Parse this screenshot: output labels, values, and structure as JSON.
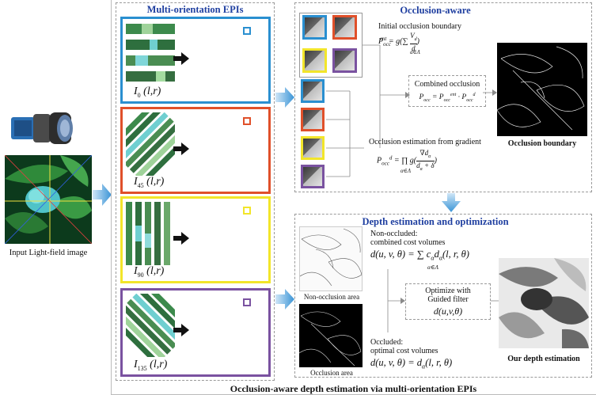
{
  "input": {
    "label": "Input Light-field image",
    "camera_icon": "lightfield-camera-icon",
    "photo": "butterfly-on-leaves-image"
  },
  "epis": {
    "title": "Multi-orientation EPIs",
    "boxes": [
      {
        "sub": "0",
        "label_rest": "(l,r)",
        "color": "#2a8fd0"
      },
      {
        "sub": "45",
        "label_rest": "(l,r)",
        "color": "#e0502a"
      },
      {
        "sub": "90",
        "label_rest": "(l,r)",
        "color": "#f2e52a"
      },
      {
        "sub": "135",
        "label_rest": "(l,r)",
        "color": "#7a52a0"
      }
    ],
    "arrow_icon": "black-right-arrow-icon"
  },
  "occlusion": {
    "title": "Occlusion-aware",
    "initial_label": "Initial occlusion boundary",
    "initial_formula": "P_occ^ent = g(∑ V_d / d)",
    "initial_sum_index": "d∈Λ",
    "combined_label": "Combined occlusion",
    "combined_formula": "P_occ = P_occ^ent · P_occ^d",
    "gradient_label": "Occlusion estimation from gradient",
    "gradient_formula": "P_occ^d = ∏ g(∇d_α / (d_α + δ))",
    "gradient_prod_index": "α∈Λ",
    "result_label": "Occlusion boundary"
  },
  "depth": {
    "title": "Depth estimation and optimization",
    "nonocc_label_1": "Non-occluded:",
    "nonocc_label_2": "combined cost volumes",
    "nonocc_formula": "d(u,v,θ) = ∑ c_α d_α(l,r,θ)",
    "nonocc_sum_index": "α∈Λ",
    "nonocc_area": "Non-occlusion area",
    "occ_label_1": "Occluded:",
    "occ_label_2": "optimal cost volumes",
    "occ_formula": "d(u,v,θ) = d_α(l,r,θ)",
    "occ_area": "Occlusion area",
    "optimize_1": "Optimize with",
    "optimize_2": "Guided filter",
    "optimize_formula": "d(u,v,θ)",
    "result_label": "Our depth estimation"
  },
  "caption": "Occlusion-aware depth estimation via multi-orientation EPIs"
}
